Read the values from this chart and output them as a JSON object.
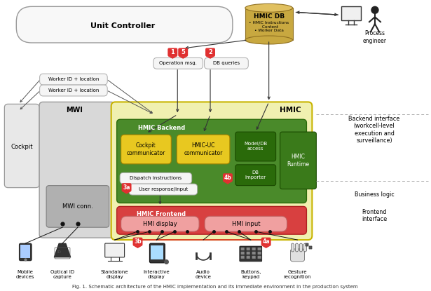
{
  "bg_color": "#ffffff",
  "colors": {
    "hmic_outer": "#f0f0b0",
    "hmic_outer_border": "#c8b400",
    "hmic_backend_fill": "#4a8a2a",
    "hmic_backend_border": "#2a6a0a",
    "hmic_frontend_fill": "#d84040",
    "hmic_frontend_border": "#b02020",
    "hmi_box_fill": "#f0a0a0",
    "hmi_box_border": "#c06060",
    "cockpit_comm_fill": "#e8c820",
    "cockpit_comm_border": "#a08000",
    "uc_comm_fill": "#e8c820",
    "uc_comm_border": "#a08000",
    "mwi_fill": "#d8d8d8",
    "mwi_border": "#999999",
    "mwi_conn_fill": "#b0b0b0",
    "mwi_conn_border": "#808080",
    "cockpit_fill": "#e8e8e8",
    "cockpit_border": "#999999",
    "db_fill": "#c8a840",
    "db_top": "#e0c060",
    "db_border": "#907020",
    "step_fill": "#e03030",
    "arrow_dark": "#222222",
    "arrow_red": "#e03030",
    "dashed_line": "#aaaaaa",
    "callout_fill": "#f5f5f5",
    "callout_border": "#aaaaaa",
    "model_db_fill": "#2a6a0a",
    "model_db_border": "#1a4a00",
    "runtime_fill": "#3a7a1a",
    "runtime_border": "#1a4a00",
    "unit_ctrl_fill": "#f8f8f8",
    "unit_ctrl_border": "#999999"
  },
  "labels": {
    "unit_controller": "Unit Controller",
    "hmic_db": "HMIC DB",
    "hmic_db_sub": "• HMIC Instructions\n  Content\n• Worker Data",
    "process_eng": "Process\nengineer",
    "backend_iface": "Backend interface\n(workcell-level\nexecution and\nsurveillance)",
    "business_logic": "Business logic",
    "frontend_iface": "Frontend\ninterface",
    "hmic_label": "HMIC",
    "mwi_label": "MWI",
    "cockpit_label": "Cockpit",
    "hmic_backend": "HMIC Backend",
    "hmic_frontend": "HMIC Frontend",
    "cockpit_comm": "Cockpit\ncommunicator",
    "uc_comm": "HMIC-UC\ncommunicator",
    "model_db": "Model/DB\naccess",
    "db_importer": "DB\nImporter",
    "hmic_runtime": "HMIC\nRuntime",
    "hmi_display": "HMI display",
    "hmi_input": "HMI input",
    "mwi_conn": "MWI conn.",
    "dispatch": "Dispatch instructions",
    "user_response": "User response/input",
    "op_msg": "Operation msg.",
    "db_queries": "DB queries",
    "worker_id1": "Worker ID + location",
    "worker_id2": "Worker ID + location",
    "mobile": "Mobile\ndevices",
    "optical": "Optical ID\ncapture",
    "standalone": "Standalone\ndisplay",
    "interactive": "Interactive\ndisplay",
    "audio": "Audio\ndevice",
    "buttons": "Buttons,\nkeypad",
    "gesture": "Gesture\nrecognition"
  }
}
